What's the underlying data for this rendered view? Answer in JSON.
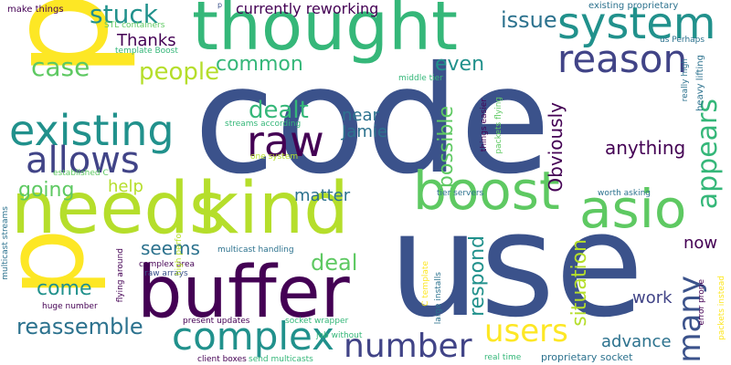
{
  "palette": {
    "navy": "#3b528b",
    "purple": "#440154",
    "teal": "#21918c",
    "green": "#5ec962",
    "lime": "#b5de2b",
    "blue_teal": "#2c728e",
    "emerald": "#35b779",
    "yellow": "#fde725",
    "violet": "#414487"
  },
  "words": {
    "code": "code",
    "use": "use",
    "thought": "thought",
    "p": "p",
    "needs": "needs",
    "kind": "kind",
    "buffer": "buffer",
    "boost": "boost",
    "asio": "asio",
    "system": "system",
    "reason": "reason",
    "existing": "existing",
    "allows": "allows",
    "raw": "raw",
    "complex": "complex",
    "number": "number",
    "users": "users",
    "many": "many",
    "appears": "appears",
    "stuck": "stuck",
    "case": "case",
    "people": "people",
    "common": "common",
    "even": "even",
    "issue": "issue",
    "thanks": "Thanks",
    "dealt": "dealt",
    "near": "near",
    "jamie": "Jamie",
    "possible": "possible",
    "obviously": "Obviously",
    "going": "going",
    "help": "help",
    "anything": "anything",
    "matter": "matter",
    "seems": "seems",
    "deal": "deal",
    "respond": "respond",
    "situation": "situation",
    "now": "now",
    "come": "come",
    "work": "work",
    "reassemble": "reassemble",
    "advance": "advance",
    "currently_reworking": "currently reworking",
    "existing_proprietary": "existing proprietary",
    "make_things": "make things",
    "stl_containers": "STL containers",
    "template_boost": "template Boost",
    "us_perhaps": "us Perhaps",
    "middle_tier": "middle tier",
    "really_high": "really high",
    "heavy_lifting": "heavy lifting",
    "streams_according": "streams according",
    "established_c": "established C",
    "one_system": "one system",
    "things_easier": "things easier",
    "packets_flying": "packets flying",
    "tier_servers": "tier servers",
    "worth_asking": "worth asking",
    "multicast_streams": "multicast streams",
    "high_performance": "high performance",
    "multicast_handling": "multicast handling",
    "complex_area": "complex area",
    "raw_arrays": "raw arrays",
    "flying_around": "flying around",
    "huge_number": "huge number",
    "c_template": "C template",
    "large_installs": "large installs",
    "error_prone": "error prone",
    "packets_instead": "packets instead",
    "present_updates": "present updates",
    "socket_wrapper": "socket wrapper",
    "job_without": "job without",
    "client_boxes": "client boxes",
    "send_multicasts": "send multicasts",
    "real_time": "real time",
    "proprietary_socket": "proprietary socket",
    "p_small": "p"
  }
}
